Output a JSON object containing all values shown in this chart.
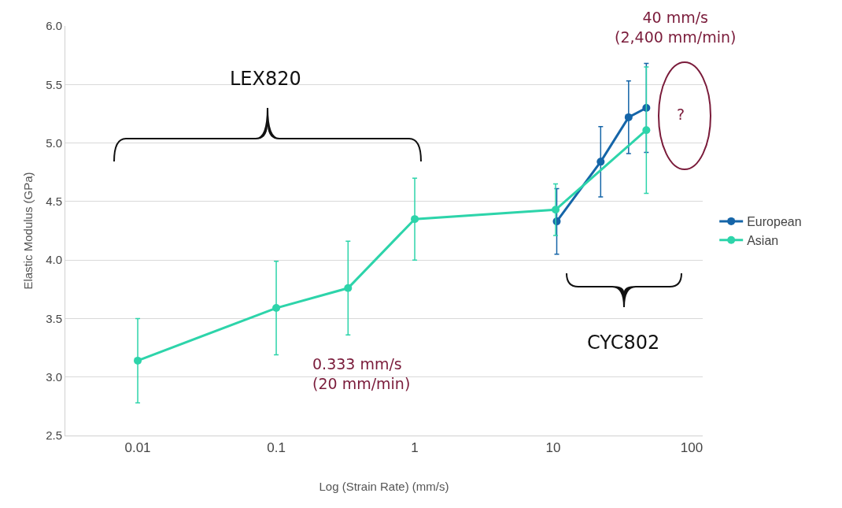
{
  "chart_data": {
    "type": "line",
    "xlabel": "Log (Strain Rate) (mm/s)",
    "ylabel": "Elastic Modulus (GPa)",
    "series": [
      {
        "name": "European",
        "color": "#1565a8",
        "x": [
          10.6,
          22,
          35,
          47
        ],
        "values": [
          4.33,
          4.84,
          5.22,
          5.3
        ],
        "errors": [
          0.28,
          0.3,
          0.31,
          0.38
        ]
      },
      {
        "name": "Asian",
        "color": "#2dd4aa",
        "x": [
          0.01,
          0.1,
          0.33,
          1,
          10.4,
          47
        ],
        "values": [
          3.14,
          3.59,
          3.76,
          4.35,
          4.43,
          5.11
        ],
        "errors": [
          0.36,
          0.4,
          0.4,
          0.35,
          0.22,
          0.54
        ]
      }
    ],
    "log": "x",
    "xlim": [
      0.003,
      120
    ],
    "xticks": [
      0.01,
      0.1,
      1,
      10,
      100
    ],
    "ylim": [
      2.5,
      6.0
    ],
    "yticks": [
      {
        "value": 2.5,
        "label": "2.5"
      },
      {
        "value": 3,
        "label": "3.0"
      },
      {
        "value": 3.5,
        "label": "3.5"
      },
      {
        "value": 4,
        "label": "4.0"
      },
      {
        "value": 4.5,
        "label": "4.5"
      },
      {
        "value": 5,
        "label": "5.0"
      },
      {
        "value": 5.5,
        "label": "5.5"
      },
      {
        "value": 6,
        "label": "6.0"
      }
    ],
    "grid": "y",
    "legend": "right",
    "marker": "circle",
    "line_style": "solid",
    "annotations": [
      "LEX820",
      "CYC802",
      "0.333 mm/s\n(20 mm/min)",
      "40 mm/s\n(2,400 mm/min)",
      "?"
    ]
  }
}
